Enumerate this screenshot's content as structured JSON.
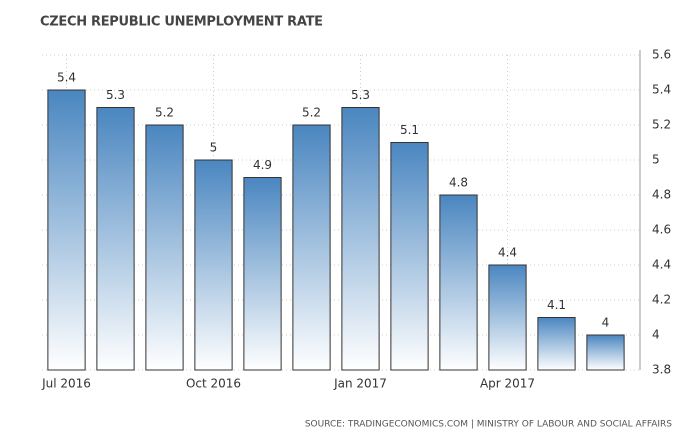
{
  "chart_data": {
    "type": "bar",
    "title": "CZECH REPUBLIC UNEMPLOYMENT RATE",
    "source": "SOURCE: TRADINGECONOMICS.COM | MINISTRY OF LABOUR AND SOCIAL AFFAIRS",
    "categories": [
      "Jul 2016",
      null,
      null,
      "Oct 2016",
      null,
      null,
      "Jan 2017",
      null,
      null,
      "Apr 2017",
      null,
      null
    ],
    "values": [
      5.4,
      5.3,
      5.2,
      5,
      4.9,
      5.2,
      5.3,
      5.1,
      4.8,
      4.4,
      4.1,
      4
    ],
    "color": "#4a86c0",
    "ylim": [
      3.8,
      5.6
    ],
    "yticks": [
      3.8,
      4,
      4.2,
      4.4,
      4.6,
      4.8,
      5,
      5.2,
      5.4,
      5.6
    ],
    "grid": true
  }
}
